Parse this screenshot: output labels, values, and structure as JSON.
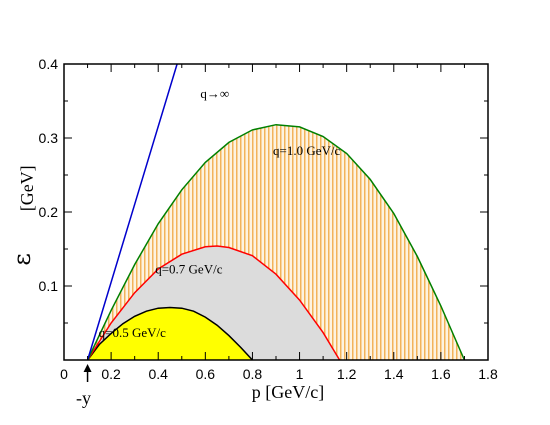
{
  "chart_data": {
    "type": "line",
    "xlabel": "p [GeV/c]",
    "ylabel_symbol": "ε",
    "ylabel_unit": "[GeV]",
    "xlim": [
      0,
      1.8
    ],
    "ylim": [
      0,
      0.4
    ],
    "x_ticks": [
      "0",
      "0.2",
      "0.4",
      "0.6",
      "0.8",
      "1",
      "1.2",
      "1.4",
      "1.6",
      "1.8"
    ],
    "y_ticks": [
      "0.1",
      "0.2",
      "0.3",
      "0.4"
    ],
    "y_tick_values": [
      0.1,
      0.2,
      0.3,
      0.4
    ],
    "marker_label": "-y",
    "marker_x": 0.1,
    "series": [
      {
        "name": "q=0.5 GeV/c",
        "color": "#000000",
        "fill": "#ffff00",
        "x": [
          0.1,
          0.15,
          0.2,
          0.25,
          0.3,
          0.35,
          0.4,
          0.45,
          0.5,
          0.55,
          0.6,
          0.65,
          0.7,
          0.75,
          0.8
        ],
        "y": [
          0.0,
          0.021,
          0.036,
          0.049,
          0.059,
          0.066,
          0.07,
          0.071,
          0.07,
          0.066,
          0.058,
          0.047,
          0.033,
          0.017,
          0.0
        ]
      },
      {
        "name": "q=0.7 GeV/c",
        "color": "#ff0000",
        "fill": "#dcdcdc",
        "x": [
          0.1,
          0.2,
          0.3,
          0.4,
          0.5,
          0.6,
          0.65,
          0.7,
          0.8,
          0.9,
          1.0,
          1.1,
          1.17
        ],
        "y": [
          0.0,
          0.05,
          0.091,
          0.123,
          0.143,
          0.153,
          0.154,
          0.152,
          0.141,
          0.116,
          0.081,
          0.037,
          0.0
        ]
      },
      {
        "name": "q=1.0 GeV/c",
        "color": "#008000",
        "fill": "#f7d9a6",
        "x": [
          0.1,
          0.2,
          0.3,
          0.4,
          0.5,
          0.6,
          0.7,
          0.8,
          0.9,
          1.0,
          1.1,
          1.2,
          1.3,
          1.4,
          1.5,
          1.6,
          1.7
        ],
        "y": [
          0.0,
          0.067,
          0.129,
          0.184,
          0.23,
          0.267,
          0.294,
          0.311,
          0.318,
          0.315,
          0.302,
          0.279,
          0.244,
          0.198,
          0.14,
          0.073,
          0.0
        ]
      },
      {
        "name": "q→∞",
        "color": "#0000cc",
        "x": [
          0.1,
          0.48
        ],
        "y": [
          0.0,
          0.4
        ]
      }
    ],
    "grid": false
  }
}
